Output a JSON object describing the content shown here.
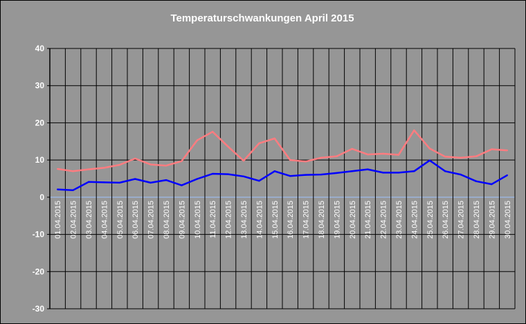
{
  "chart_data": {
    "type": "line",
    "title": "Temperaturschwankungen April 2015",
    "xlabel": "",
    "ylabel": "",
    "ylim": [
      -30,
      40
    ],
    "yticks": [
      40,
      30,
      20,
      10,
      0,
      -10,
      -20,
      -30
    ],
    "grid": true,
    "legend": "none",
    "categories": [
      "01.04.2015",
      "02.04.2015",
      "03.04.2015",
      "04.04.2015",
      "05.04.2015",
      "06.04.2015",
      "07.04.2015",
      "08.04.2015",
      "09.04.2015",
      "10.04.2015",
      "11.04.2015",
      "12.04.2015",
      "13.04.2015",
      "14.04.2015",
      "15.04.2015",
      "16.04.2015",
      "17.04.2015",
      "18.04.2015",
      "19.04.2015",
      "20.04.2015",
      "21.04.2015",
      "22.04.2015",
      "23.04.2015",
      "24.04.2015",
      "25.04.2015",
      "26.04.2015",
      "27.04.2015",
      "28.04.2015",
      "29.04.2015",
      "30.04.2015"
    ],
    "series": [
      {
        "color": "#ff7c80",
        "values": [
          7.6,
          7.0,
          7.5,
          7.9,
          8.7,
          10.4,
          8.8,
          8.5,
          9.7,
          15.3,
          17.6,
          13.6,
          9.8,
          14.5,
          15.8,
          10.0,
          9.6,
          10.6,
          11.0,
          13.0,
          11.5,
          11.7,
          11.4,
          18.0,
          13.1,
          10.9,
          10.6,
          11.0,
          12.9,
          12.6
        ]
      },
      {
        "color": "#0000ff",
        "values": [
          2.1,
          1.9,
          4.1,
          4.0,
          3.9,
          4.9,
          3.9,
          4.6,
          3.2,
          4.9,
          6.3,
          6.2,
          5.6,
          4.4,
          7.0,
          5.7,
          6.0,
          6.1,
          6.5,
          7.0,
          7.5,
          6.6,
          6.6,
          7.0,
          9.9,
          7.0,
          6.1,
          4.3,
          3.5,
          5.9
        ]
      }
    ]
  }
}
